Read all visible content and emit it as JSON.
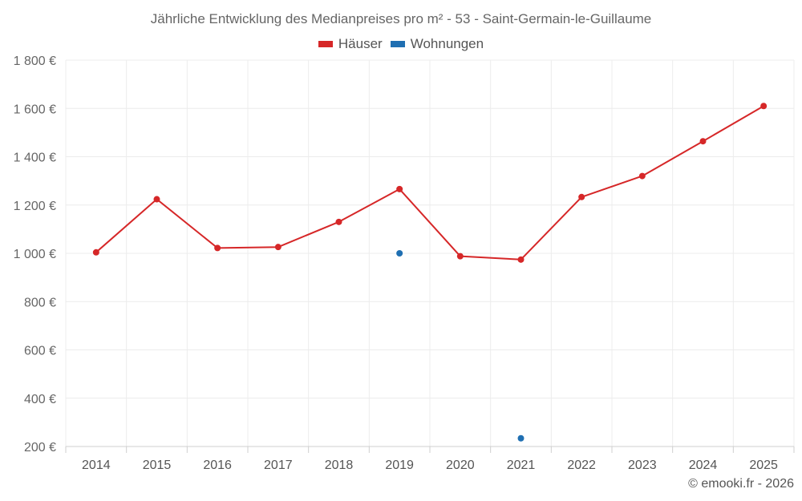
{
  "chart_data": {
    "type": "line",
    "title": "Jährliche Entwicklung des Medianpreises pro m² - 53 - Saint-Germain-le-Guillaume",
    "categories": [
      "2014",
      "2015",
      "2016",
      "2017",
      "2018",
      "2019",
      "2020",
      "2021",
      "2022",
      "2023",
      "2024",
      "2025"
    ],
    "series": [
      {
        "name": "Häuser",
        "color": "#d62728",
        "values": [
          1004,
          1224,
          1022,
          1026,
          1130,
          1266,
          988,
          974,
          1233,
          1320,
          1464,
          1610
        ]
      },
      {
        "name": "Wohnungen",
        "color": "#1f6fb2",
        "values": [
          null,
          null,
          null,
          null,
          null,
          1000,
          null,
          234,
          null,
          null,
          null,
          null
        ]
      }
    ],
    "ylim": [
      200,
      1800
    ],
    "yticks": [
      200,
      400,
      600,
      800,
      1000,
      1200,
      1400,
      1600,
      1800
    ],
    "ytick_labels": [
      "200 €",
      "400 €",
      "600 €",
      "800 €",
      "1 000 €",
      "1 200 €",
      "1 400 €",
      "1 600 €",
      "1 800 €"
    ],
    "xlabel": "",
    "ylabel": "",
    "grid": true,
    "legend_position": "top-center"
  },
  "credit": "© emooki.fr - 2026"
}
